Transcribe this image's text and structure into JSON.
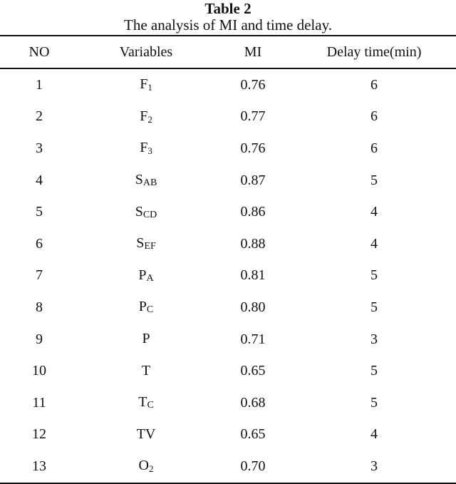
{
  "caption": {
    "title": "Table 2",
    "subtitle": "The analysis of MI and time delay."
  },
  "table": {
    "headers": [
      "NO",
      "Variables",
      "MI",
      "Delay time(min)"
    ],
    "rows": [
      {
        "no": "1",
        "var_base": "F",
        "var_sub": "1",
        "mi": "0.76",
        "delay": "6"
      },
      {
        "no": "2",
        "var_base": "F",
        "var_sub": "2",
        "mi": "0.77",
        "delay": "6"
      },
      {
        "no": "3",
        "var_base": "F",
        "var_sub": "3",
        "mi": "0.76",
        "delay": "6"
      },
      {
        "no": "4",
        "var_base": "S",
        "var_sub": "AB",
        "mi": "0.87",
        "delay": "5"
      },
      {
        "no": "5",
        "var_base": "S",
        "var_sub": "CD",
        "mi": "0.86",
        "delay": "4"
      },
      {
        "no": "6",
        "var_base": "S",
        "var_sub": "EF",
        "mi": "0.88",
        "delay": "4"
      },
      {
        "no": "7",
        "var_base": "P",
        "var_sub": "A",
        "mi": "0.81",
        "delay": "5"
      },
      {
        "no": "8",
        "var_base": "P",
        "var_sub": "C",
        "mi": "0.80",
        "delay": "5"
      },
      {
        "no": "9",
        "var_base": "P",
        "var_sub": "",
        "mi": "0.71",
        "delay": "3"
      },
      {
        "no": "10",
        "var_base": "T",
        "var_sub": "",
        "mi": "0.65",
        "delay": "5"
      },
      {
        "no": "11",
        "var_base": "T",
        "var_sub": "C",
        "mi": "0.68",
        "delay": "5"
      },
      {
        "no": "12",
        "var_base": "TV",
        "var_sub": "",
        "mi": "0.65",
        "delay": "4"
      },
      {
        "no": "13",
        "var_base": "O",
        "var_sub": "2",
        "mi": "0.70",
        "delay": "3"
      }
    ]
  }
}
